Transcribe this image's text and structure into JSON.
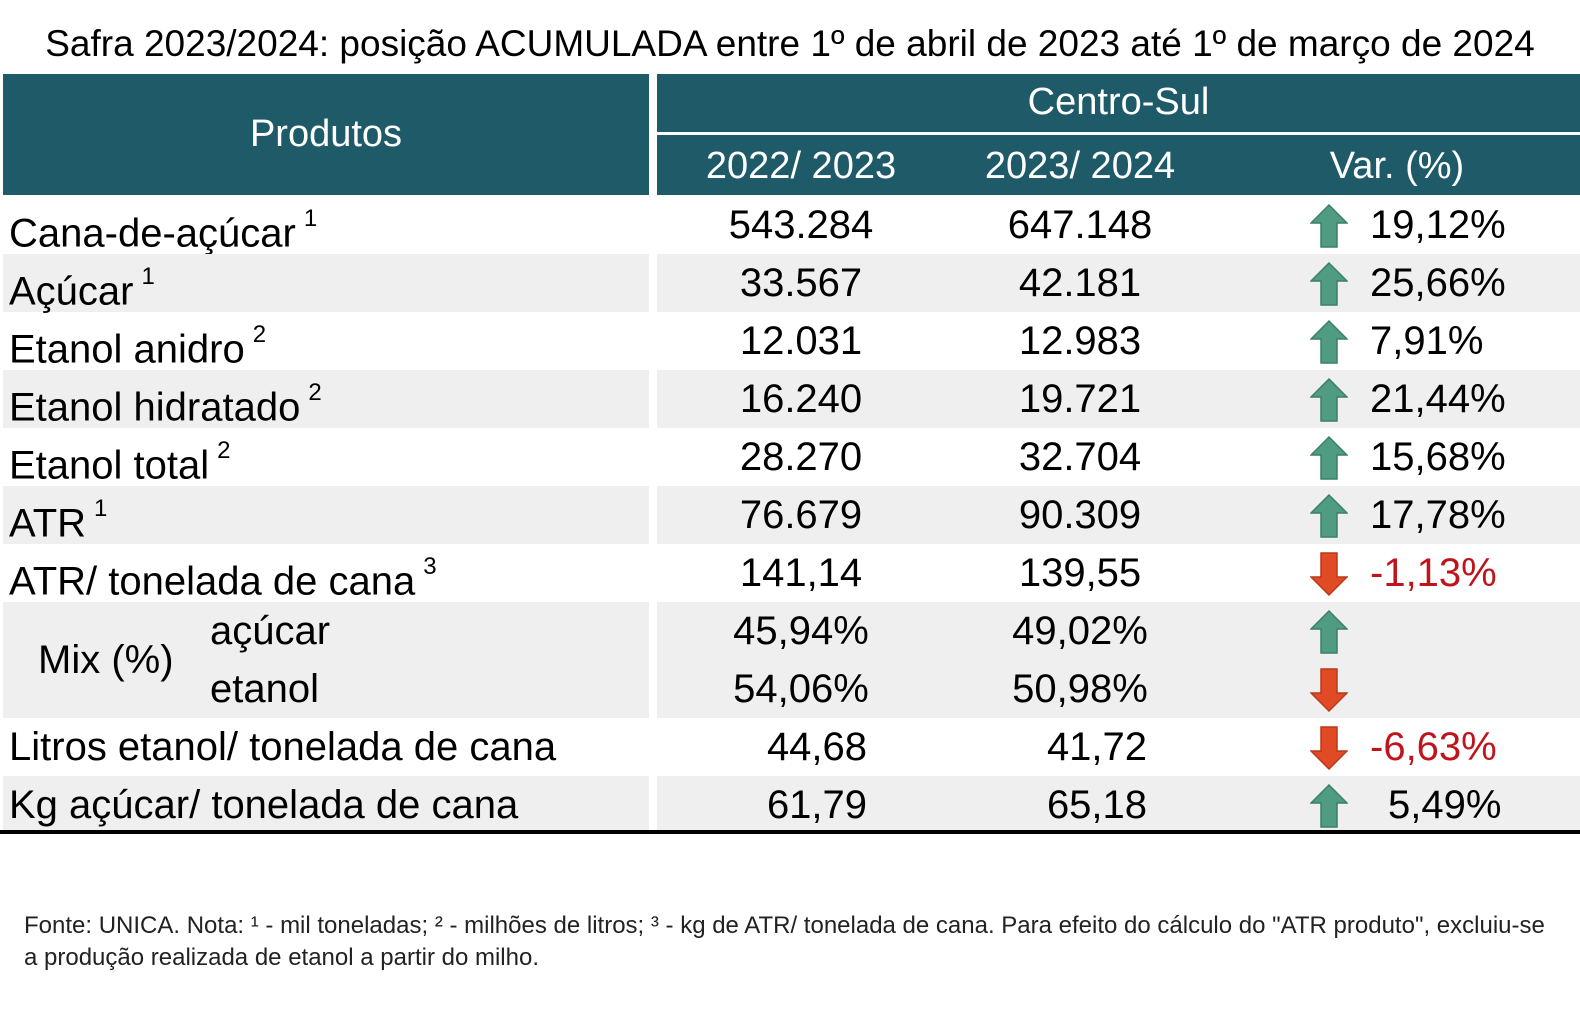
{
  "title": "Safra 2023/2024: posição ACUMULADA entre 1º de abril de 2023 até 1º de março de 2024",
  "header": {
    "products": "Produtos",
    "region": "Centro-Sul",
    "col1": "2022/ 2023",
    "col2": "2023/ 2024",
    "col3": "Var. (%)"
  },
  "colors": {
    "header_bg": "#1f5a69",
    "row_shade": "#efefef",
    "up_arrow": "#4f9c83",
    "down_arrow": "#e04a24",
    "negative_text": "#c0141c"
  },
  "rows": [
    {
      "label": "Cana-de-açúcar",
      "note": "1",
      "v1": "543.284",
      "v2": "647.148",
      "var": "19,12%",
      "dir": "up"
    },
    {
      "label": "Açúcar",
      "note": "1",
      "v1": "33.567",
      "v2": "42.181",
      "var": "25,66%",
      "dir": "up"
    },
    {
      "label": "Etanol anidro",
      "note": "2",
      "v1": "12.031",
      "v2": "12.983",
      "var": "7,91%",
      "dir": "up"
    },
    {
      "label": "Etanol hidratado",
      "note": "2",
      "v1": "16.240",
      "v2": "19.721",
      "var": "21,44%",
      "dir": "up"
    },
    {
      "label": "Etanol total",
      "note": "2",
      "v1": "28.270",
      "v2": "32.704",
      "var": "15,68%",
      "dir": "up"
    },
    {
      "label": "ATR",
      "note": "1",
      "v1": "76.679",
      "v2": "90.309",
      "var": "17,78%",
      "dir": "up"
    },
    {
      "label": "ATR/ tonelada de cana",
      "note": "3",
      "v1": "141,14",
      "v2": "139,55",
      "var": "-1,13%",
      "dir": "down"
    }
  ],
  "mix": {
    "label": "Mix (%)",
    "sugar": {
      "label": "açúcar",
      "v1": "45,94%",
      "v2": "49,02%",
      "dir": "up"
    },
    "ethanol": {
      "label": "etanol",
      "v1": "54,06%",
      "v2": "50,98%",
      "dir": "down"
    }
  },
  "rows_after": [
    {
      "label": "Litros etanol/ tonelada de cana",
      "v1": "44,68",
      "v2": "41,72",
      "var": "-6,63%",
      "dir": "down"
    },
    {
      "label": "Kg açúcar/ tonelada de cana",
      "v1": "61,79",
      "v2": "65,18",
      "var": "5,49%",
      "dir": "up"
    }
  ],
  "footnote": "Fonte: UNICA. Nota: ¹ - mil toneladas; ² - milhões de litros; ³ - kg de ATR/ tonelada de cana. Para efeito do cálculo do \"ATR produto\", excluiu-se a produção realizada de etanol a partir do milho."
}
